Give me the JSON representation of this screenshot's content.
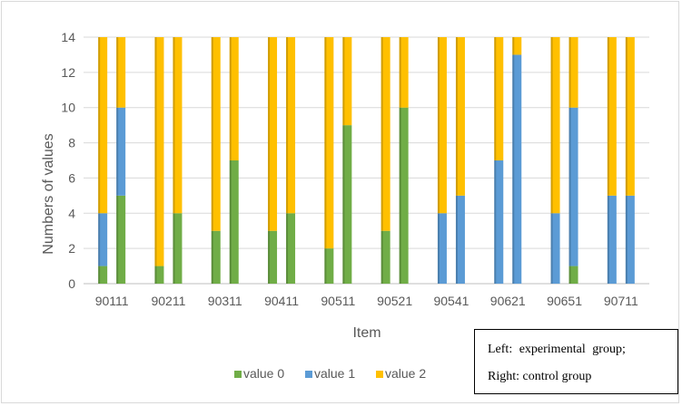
{
  "chart_data": {
    "type": "bar",
    "stacked": true,
    "grouped_pairs": true,
    "xlabel": "Item",
    "ylabel": "Numbers of values",
    "ylim": [
      0,
      14
    ],
    "yticks": [
      0,
      2,
      4,
      6,
      8,
      10,
      12,
      14
    ],
    "grid": true,
    "legend_position": "bottom",
    "categories": [
      "90111",
      "90211",
      "90311",
      "90411",
      "90511",
      "90521",
      "90541",
      "90621",
      "90651",
      "90711"
    ],
    "groups": [
      "left",
      "right"
    ],
    "series": [
      {
        "name": "value 0",
        "color": "#70ad47",
        "left": [
          1,
          1,
          3,
          3,
          2,
          3,
          0,
          0,
          0,
          0
        ],
        "right": [
          5,
          4,
          7,
          4,
          9,
          10,
          0,
          0,
          1,
          0
        ]
      },
      {
        "name": "value 1",
        "color": "#5b9bd5",
        "left": [
          3,
          0,
          0,
          0,
          0,
          0,
          4,
          7,
          4,
          5
        ],
        "right": [
          5,
          0,
          0,
          0,
          0,
          0,
          5,
          13,
          9,
          5
        ]
      },
      {
        "name": "value 2",
        "color": "#ffc000",
        "left": [
          10,
          13,
          11,
          11,
          12,
          11,
          10,
          7,
          10,
          9
        ],
        "right": [
          4,
          10,
          7,
          10,
          5,
          4,
          9,
          1,
          4,
          9
        ]
      }
    ]
  },
  "note": {
    "line1": "Left: experimental group;",
    "line2": "Right: control group"
  },
  "colors": {
    "axis_text": "#595959",
    "gridline": "#d9d9d9"
  }
}
